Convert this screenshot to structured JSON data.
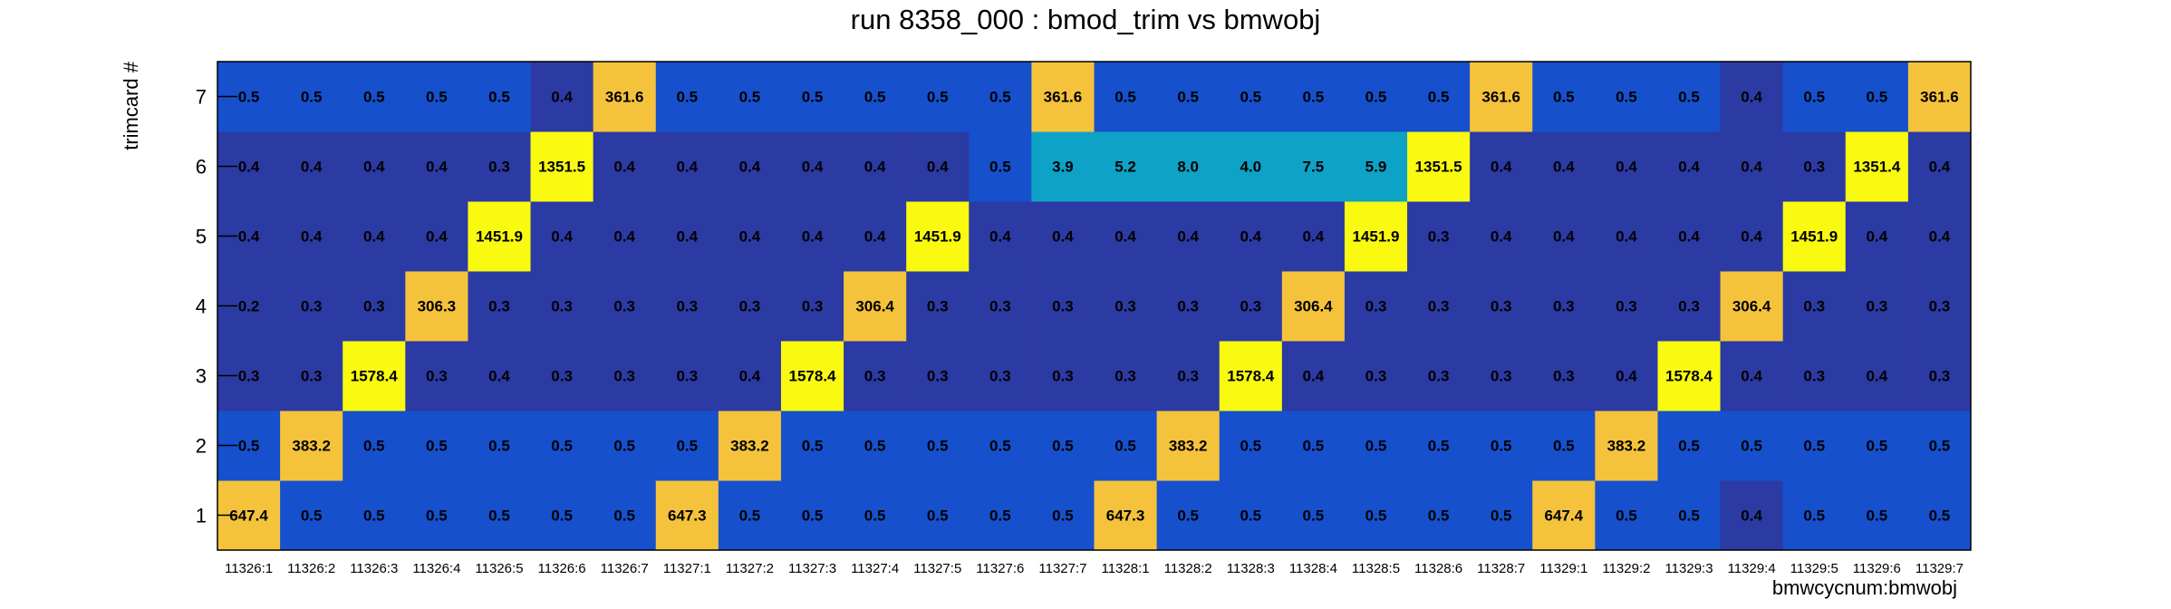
{
  "chart_data": {
    "type": "heatmap",
    "title": "run 8358_000 : bmod_trim vs bmwobj",
    "xlabel": "bmwcycnum:bmwobj",
    "ylabel": "trimcard #",
    "x_categories": [
      "11326:1",
      "11326:2",
      "11326:3",
      "11326:4",
      "11326:5",
      "11326:6",
      "11326:7",
      "11327:1",
      "11327:2",
      "11327:3",
      "11327:4",
      "11327:5",
      "11327:6",
      "11327:7",
      "11328:1",
      "11328:2",
      "11328:3",
      "11328:4",
      "11328:5",
      "11328:6",
      "11328:7",
      "11329:1",
      "11329:2",
      "11329:3",
      "11329:4",
      "11329:5",
      "11329:6",
      "11329:7"
    ],
    "y_categories": [
      "1",
      "2",
      "3",
      "4",
      "5",
      "6",
      "7"
    ],
    "values": [
      [
        "647.4",
        "0.5",
        "0.5",
        "0.5",
        "0.5",
        "0.5",
        "0.5",
        "647.3",
        "0.5",
        "0.5",
        "0.5",
        "0.5",
        "0.5",
        "0.5",
        "647.3",
        "0.5",
        "0.5",
        "0.5",
        "0.5",
        "0.5",
        "0.5",
        "647.4",
        "0.5",
        "0.5",
        "0.4",
        "0.5",
        "0.5",
        "0.5"
      ],
      [
        "0.5",
        "383.2",
        "0.5",
        "0.5",
        "0.5",
        "0.5",
        "0.5",
        "0.5",
        "383.2",
        "0.5",
        "0.5",
        "0.5",
        "0.5",
        "0.5",
        "0.5",
        "383.2",
        "0.5",
        "0.5",
        "0.5",
        "0.5",
        "0.5",
        "0.5",
        "383.2",
        "0.5",
        "0.5",
        "0.5",
        "0.5",
        "0.5"
      ],
      [
        "0.3",
        "0.3",
        "1578.4",
        "0.3",
        "0.4",
        "0.3",
        "0.3",
        "0.3",
        "0.4",
        "1578.4",
        "0.3",
        "0.3",
        "0.3",
        "0.3",
        "0.3",
        "0.3",
        "1578.4",
        "0.4",
        "0.3",
        "0.3",
        "0.3",
        "0.3",
        "0.4",
        "1578.4",
        "0.4",
        "0.3",
        "0.4",
        "0.3"
      ],
      [
        "0.2",
        "0.3",
        "0.3",
        "306.3",
        "0.3",
        "0.3",
        "0.3",
        "0.3",
        "0.3",
        "0.3",
        "306.4",
        "0.3",
        "0.3",
        "0.3",
        "0.3",
        "0.3",
        "0.3",
        "306.4",
        "0.3",
        "0.3",
        "0.3",
        "0.3",
        "0.3",
        "0.3",
        "306.4",
        "0.3",
        "0.3",
        "0.3"
      ],
      [
        "0.4",
        "0.4",
        "0.4",
        "0.4",
        "1451.9",
        "0.4",
        "0.4",
        "0.4",
        "0.4",
        "0.4",
        "0.4",
        "1451.9",
        "0.4",
        "0.4",
        "0.4",
        "0.4",
        "0.4",
        "0.4",
        "1451.9",
        "0.3",
        "0.4",
        "0.4",
        "0.4",
        "0.4",
        "0.4",
        "1451.9",
        "0.4",
        "0.4"
      ],
      [
        "0.4",
        "0.4",
        "0.4",
        "0.4",
        "0.3",
        "1351.5",
        "0.4",
        "0.4",
        "0.4",
        "0.4",
        "0.4",
        "0.4",
        "0.5",
        "3.9",
        "5.2",
        "8.0",
        "4.0",
        "7.5",
        "5.9",
        "1351.5",
        "0.4",
        "0.4",
        "0.4",
        "0.4",
        "0.4",
        "0.3",
        "1351.4",
        "0.4"
      ],
      [
        "0.5",
        "0.5",
        "0.5",
        "0.5",
        "0.5",
        "0.4",
        "361.6",
        "0.5",
        "0.5",
        "0.5",
        "0.5",
        "0.5",
        "0.5",
        "361.6",
        "0.5",
        "0.5",
        "0.5",
        "0.5",
        "0.5",
        "0.5",
        "361.6",
        "0.5",
        "0.5",
        "0.5",
        "0.4",
        "0.5",
        "0.5",
        "361.6"
      ]
    ],
    "palette": {
      "low_dark": "#2c3aa3",
      "low": "#1650cc",
      "mid": "#0ea2c7",
      "orange": "#f5c33b",
      "yellow": "#f9fa0f"
    },
    "grid": false,
    "legend": "none"
  }
}
